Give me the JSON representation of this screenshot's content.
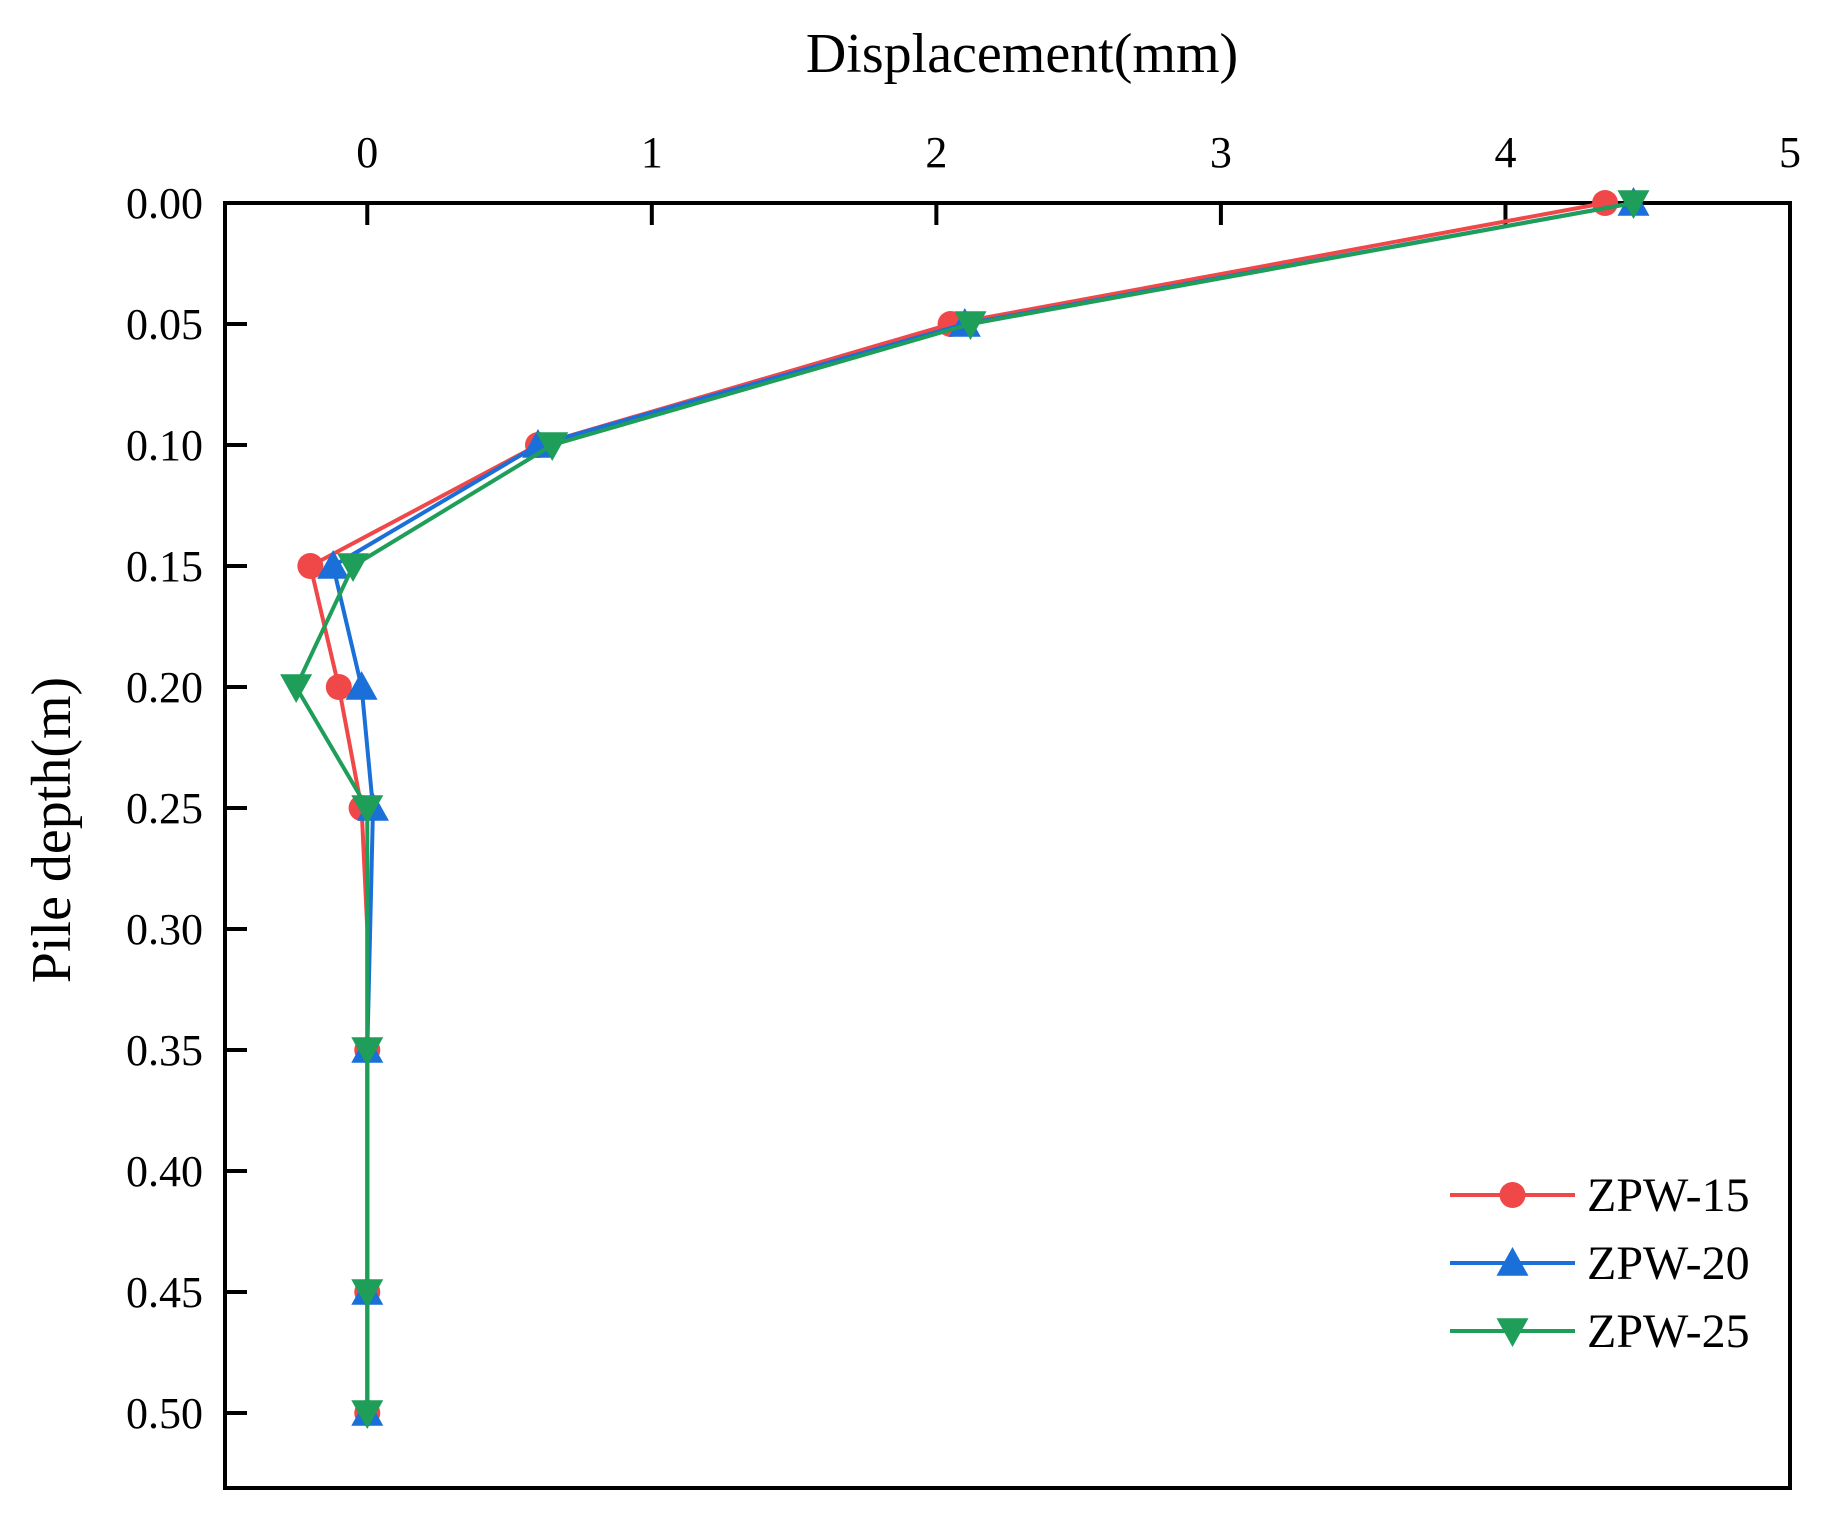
{
  "chart_data": {
    "type": "line",
    "xlabel": "Displacement(mm)",
    "ylabel": "Pile depth(m)",
    "xlim": [
      -0.5,
      5
    ],
    "ylim": [
      0,
      0.53
    ],
    "y_inverted": true,
    "x_axis_position": "top",
    "x_ticks": [
      0,
      1,
      2,
      3,
      4,
      5
    ],
    "x_tick_labels": [
      "0",
      "1",
      "2",
      "3",
      "4",
      "5"
    ],
    "y_ticks": [
      0,
      0.05,
      0.1,
      0.15,
      0.2,
      0.25,
      0.3,
      0.35,
      0.4,
      0.45,
      0.5
    ],
    "y_tick_labels": [
      "0.00",
      "0.05",
      "0.10",
      "0.15",
      "0.20",
      "0.25",
      "0.30",
      "0.35",
      "0.40",
      "0.45",
      "0.50"
    ],
    "grid": false,
    "legend_position": "bottom-right",
    "series": [
      {
        "name": "ZPW-15",
        "color": "#f04848",
        "marker": "circle",
        "x": [
          4.35,
          2.05,
          0.6,
          -0.2,
          -0.1,
          -0.02,
          0.0,
          0.0,
          0.0,
          0.0
        ],
        "y": [
          0.0,
          0.05,
          0.1,
          0.15,
          0.2,
          0.25,
          0.3,
          0.35,
          0.45,
          0.5
        ],
        "marker_mask": [
          1,
          1,
          1,
          1,
          1,
          1,
          0,
          1,
          1,
          1
        ]
      },
      {
        "name": "ZPW-20",
        "color": "#1a6fd8",
        "marker": "triangle-up",
        "x": [
          4.45,
          2.1,
          0.6,
          -0.12,
          -0.02,
          0.02,
          0.0,
          0.0,
          0.0
        ],
        "y": [
          0.0,
          0.05,
          0.1,
          0.15,
          0.2,
          0.25,
          0.35,
          0.45,
          0.5
        ],
        "marker_mask": [
          1,
          1,
          1,
          1,
          1,
          1,
          1,
          1,
          1
        ]
      },
      {
        "name": "ZPW-25",
        "color": "#1f9e5a",
        "marker": "triangle-down",
        "x": [
          4.45,
          2.12,
          0.65,
          -0.05,
          -0.25,
          0.0,
          0.0,
          0.0,
          0.0
        ],
        "y": [
          0.0,
          0.05,
          0.1,
          0.15,
          0.2,
          0.25,
          0.35,
          0.45,
          0.5
        ],
        "marker_mask": [
          1,
          1,
          1,
          1,
          1,
          1,
          1,
          1,
          1
        ]
      }
    ]
  }
}
